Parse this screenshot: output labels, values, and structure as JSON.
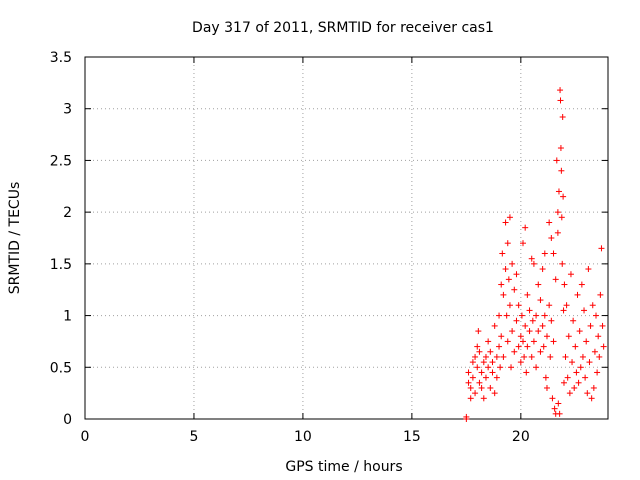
{
  "chart_data": {
    "type": "scatter",
    "title": "Day 317 of 2011, SRMTID for receiver cas1",
    "xlabel": "GPS time / hours",
    "ylabel": "SRMTID / TECUs",
    "xlim": [
      0,
      24
    ],
    "ylim": [
      0,
      3.5
    ],
    "xticks": [
      0,
      5,
      10,
      15,
      20
    ],
    "xtick_labels": [
      "0",
      "5",
      "10",
      "15",
      "20"
    ],
    "yticks": [
      0,
      0.5,
      1,
      1.5,
      2,
      2.5,
      3,
      3.5
    ],
    "ytick_labels": [
      "0",
      "0.5",
      "1",
      "1.5",
      "2",
      "2.5",
      "3",
      "3.5"
    ],
    "grid": true,
    "marker": "+",
    "color": "#ff0000",
    "series": [
      {
        "name": "SRMTID",
        "points": [
          [
            17.5,
            0.0
          ],
          [
            17.5,
            0.02
          ],
          [
            17.6,
            0.45
          ],
          [
            17.6,
            0.35
          ],
          [
            17.7,
            0.3
          ],
          [
            17.7,
            0.2
          ],
          [
            17.8,
            0.55
          ],
          [
            17.8,
            0.4
          ],
          [
            17.9,
            0.25
          ],
          [
            17.9,
            0.6
          ],
          [
            18.0,
            0.7
          ],
          [
            18.0,
            0.5
          ],
          [
            18.05,
            0.85
          ],
          [
            18.1,
            0.35
          ],
          [
            18.1,
            0.65
          ],
          [
            18.2,
            0.45
          ],
          [
            18.2,
            0.3
          ],
          [
            18.3,
            0.55
          ],
          [
            18.3,
            0.2
          ],
          [
            18.4,
            0.6
          ],
          [
            18.4,
            0.4
          ],
          [
            18.5,
            0.5
          ],
          [
            18.5,
            0.75
          ],
          [
            18.6,
            0.3
          ],
          [
            18.6,
            0.65
          ],
          [
            18.7,
            0.45
          ],
          [
            18.7,
            0.55
          ],
          [
            18.8,
            0.25
          ],
          [
            18.8,
            0.9
          ],
          [
            18.9,
            0.6
          ],
          [
            18.9,
            0.4
          ],
          [
            19.0,
            0.7
          ],
          [
            19.0,
            1.0
          ],
          [
            19.05,
            0.5
          ],
          [
            19.1,
            1.3
          ],
          [
            19.1,
            0.8
          ],
          [
            19.15,
            1.6
          ],
          [
            19.2,
            1.2
          ],
          [
            19.2,
            0.6
          ],
          [
            19.3,
            1.9
          ],
          [
            19.3,
            1.45
          ],
          [
            19.35,
            1.0
          ],
          [
            19.4,
            1.7
          ],
          [
            19.4,
            0.75
          ],
          [
            19.45,
            1.35
          ],
          [
            19.5,
            1.95
          ],
          [
            19.5,
            1.1
          ],
          [
            19.55,
            0.5
          ],
          [
            19.6,
            1.5
          ],
          [
            19.6,
            0.85
          ],
          [
            19.7,
            1.25
          ],
          [
            19.7,
            0.65
          ],
          [
            19.8,
            0.95
          ],
          [
            19.8,
            1.4
          ],
          [
            19.9,
            0.7
          ],
          [
            19.9,
            1.1
          ],
          [
            20.0,
            0.8
          ],
          [
            20.0,
            0.55
          ],
          [
            20.05,
            1.0
          ],
          [
            20.1,
            0.75
          ],
          [
            20.1,
            1.7
          ],
          [
            20.15,
            0.6
          ],
          [
            20.2,
            0.9
          ],
          [
            20.2,
            1.85
          ],
          [
            20.25,
            0.45
          ],
          [
            20.3,
            1.2
          ],
          [
            20.3,
            0.7
          ],
          [
            20.4,
            1.05
          ],
          [
            20.4,
            0.85
          ],
          [
            20.5,
            0.6
          ],
          [
            20.5,
            1.55
          ],
          [
            20.55,
            0.95
          ],
          [
            20.6,
            1.5
          ],
          [
            20.6,
            0.75
          ],
          [
            20.7,
            1.0
          ],
          [
            20.7,
            0.5
          ],
          [
            20.8,
            1.3
          ],
          [
            20.8,
            0.85
          ],
          [
            20.9,
            0.65
          ],
          [
            20.9,
            1.15
          ],
          [
            21.0,
            0.9
          ],
          [
            21.0,
            1.45
          ],
          [
            21.05,
            0.7
          ],
          [
            21.1,
            1.6
          ],
          [
            21.1,
            1.0
          ],
          [
            21.15,
            0.4
          ],
          [
            21.2,
            0.8
          ],
          [
            21.2,
            0.3
          ],
          [
            21.3,
            1.9
          ],
          [
            21.3,
            1.1
          ],
          [
            21.35,
            0.6
          ],
          [
            21.4,
            1.75
          ],
          [
            21.4,
            0.95
          ],
          [
            21.45,
            0.2
          ],
          [
            21.5,
            1.6
          ],
          [
            21.5,
            0.75
          ],
          [
            21.55,
            0.1
          ],
          [
            21.6,
            1.35
          ],
          [
            21.6,
            0.05
          ],
          [
            21.65,
            2.5
          ],
          [
            21.7,
            2.0
          ],
          [
            21.7,
            1.8
          ],
          [
            21.72,
            0.15
          ],
          [
            21.75,
            2.2
          ],
          [
            21.78,
            0.05
          ],
          [
            21.8,
            3.18
          ],
          [
            21.82,
            3.08
          ],
          [
            21.84,
            2.62
          ],
          [
            21.86,
            2.4
          ],
          [
            21.88,
            1.95
          ],
          [
            21.9,
            1.5
          ],
          [
            21.92,
            2.92
          ],
          [
            21.94,
            2.15
          ],
          [
            21.96,
            1.05
          ],
          [
            21.98,
            0.35
          ],
          [
            22.0,
            1.3
          ],
          [
            22.05,
            0.6
          ],
          [
            22.1,
            1.1
          ],
          [
            22.15,
            0.4
          ],
          [
            22.2,
            0.8
          ],
          [
            22.25,
            0.25
          ],
          [
            22.3,
            1.4
          ],
          [
            22.35,
            0.55
          ],
          [
            22.4,
            0.95
          ],
          [
            22.45,
            0.3
          ],
          [
            22.5,
            0.7
          ],
          [
            22.55,
            0.45
          ],
          [
            22.6,
            1.2
          ],
          [
            22.65,
            0.35
          ],
          [
            22.7,
            0.85
          ],
          [
            22.75,
            0.5
          ],
          [
            22.8,
            1.3
          ],
          [
            22.85,
            0.6
          ],
          [
            22.9,
            1.05
          ],
          [
            22.95,
            0.4
          ],
          [
            23.0,
            0.75
          ],
          [
            23.05,
            0.25
          ],
          [
            23.1,
            1.45
          ],
          [
            23.15,
            0.55
          ],
          [
            23.2,
            0.9
          ],
          [
            23.25,
            0.2
          ],
          [
            23.3,
            1.1
          ],
          [
            23.35,
            0.3
          ],
          [
            23.4,
            0.65
          ],
          [
            23.45,
            1.0
          ],
          [
            23.5,
            0.45
          ],
          [
            23.55,
            0.8
          ],
          [
            23.6,
            0.6
          ],
          [
            23.65,
            1.2
          ],
          [
            23.7,
            1.65
          ],
          [
            23.75,
            0.9
          ],
          [
            23.8,
            0.7
          ]
        ]
      }
    ]
  }
}
